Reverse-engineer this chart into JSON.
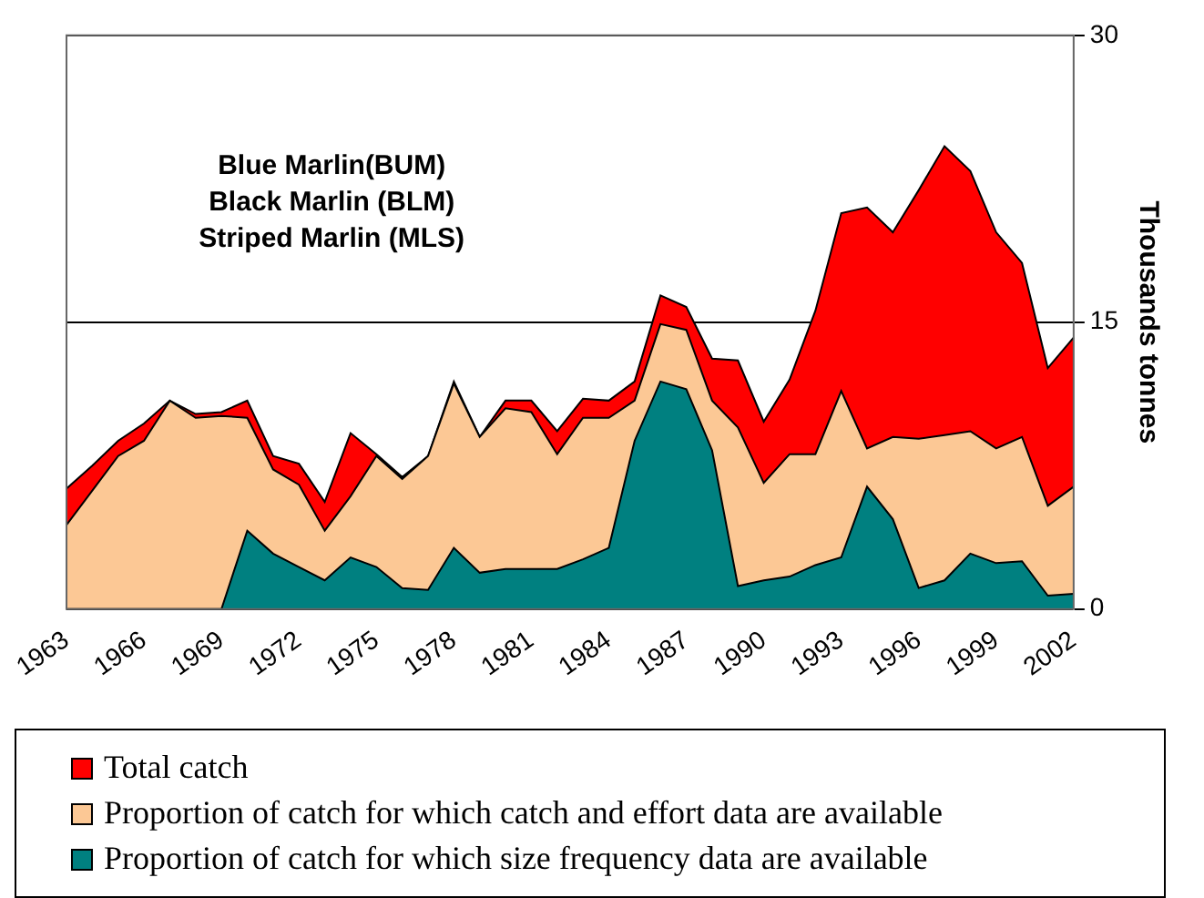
{
  "chart_data": {
    "type": "area",
    "categories": [
      "1963",
      null,
      null,
      "1966",
      null,
      null,
      "1969",
      null,
      null,
      "1972",
      null,
      null,
      "1975",
      null,
      null,
      "1978",
      null,
      null,
      "1981",
      null,
      null,
      "1984",
      null,
      null,
      "1987",
      null,
      null,
      "1990",
      null,
      null,
      "1993",
      null,
      null,
      "1996",
      null,
      null,
      "1999",
      null,
      null,
      "2002"
    ],
    "series": [
      {
        "name": "Total catch",
        "color": "#ff0000",
        "values": [
          6.3,
          7.5,
          8.8,
          9.7,
          10.9,
          10.2,
          10.3,
          10.9,
          8.0,
          7.6,
          5.6,
          9.2,
          8.1,
          6.9,
          8.0,
          11.9,
          9.0,
          10.9,
          10.9,
          9.3,
          11.0,
          10.9,
          11.9,
          16.4,
          15.8,
          13.1,
          13.0,
          9.8,
          12.0,
          15.6,
          20.7,
          21.0,
          19.7,
          21.9,
          24.2,
          22.9,
          19.7,
          18.1,
          12.6,
          14.2
        ]
      },
      {
        "name": "Proportion of catch for which catch and effort data are available",
        "color": "#fcc895",
        "values": [
          4.4,
          6.2,
          8.0,
          8.8,
          10.9,
          10.0,
          10.1,
          10.0,
          7.3,
          6.5,
          4.1,
          5.9,
          8.0,
          6.8,
          8.0,
          11.8,
          9.0,
          10.5,
          10.3,
          8.1,
          10.0,
          10.0,
          10.9,
          14.9,
          14.6,
          10.9,
          9.5,
          6.6,
          8.1,
          8.1,
          11.4,
          8.4,
          9.0,
          8.9,
          9.1,
          9.3,
          8.4,
          9.0,
          5.4,
          6.4
        ]
      },
      {
        "name": "Proportion of catch for which size frequency data are available",
        "color": "#008080",
        "values": [
          0,
          0,
          0,
          0,
          0,
          0,
          0,
          4.1,
          2.9,
          2.2,
          1.5,
          2.7,
          2.2,
          1.1,
          1.0,
          3.2,
          1.9,
          2.1,
          2.1,
          2.1,
          2.6,
          3.2,
          8.8,
          11.9,
          11.5,
          8.3,
          1.2,
          1.5,
          1.7,
          2.3,
          2.7,
          6.4,
          4.7,
          1.1,
          1.5,
          2.9,
          2.4,
          2.5,
          0.7,
          0.8
        ]
      }
    ],
    "ylabel": "Thousands tonnes",
    "ylim": [
      0,
      30
    ],
    "yticks": [
      0,
      15,
      30
    ],
    "grid": "y",
    "legend": "bottom",
    "annotations": [
      "Blue Marlin(BUM)",
      "Black Marlin (BLM)",
      "Striped Marlin (MLS)"
    ]
  }
}
